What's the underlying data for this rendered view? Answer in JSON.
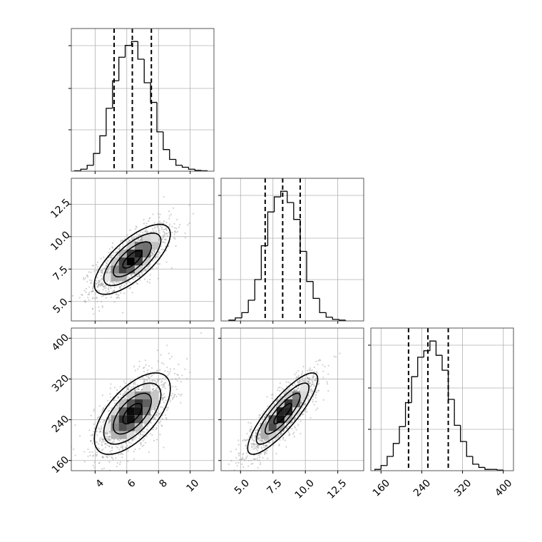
{
  "chart_data": {
    "type": "corner",
    "grid": true,
    "parameters": [
      {
        "range": [
          2.5,
          11.5
        ],
        "ticks": [
          4,
          6,
          8,
          10
        ],
        "tick_labels": [
          "4",
          "6",
          "8",
          "10"
        ],
        "quantiles": [
          5.2,
          6.35,
          7.55
        ]
      },
      {
        "range": [
          3.5,
          14.5
        ],
        "ticks": [
          5.0,
          7.5,
          10.0,
          12.5
        ],
        "tick_labels": [
          "5.0",
          "7.5",
          "10.0",
          "12.5"
        ],
        "quantiles": [
          6.9,
          8.25,
          9.6
        ]
      },
      {
        "range": [
          140,
          420
        ],
        "ticks": [
          160,
          240,
          320,
          400
        ],
        "tick_labels": [
          "160",
          "240",
          "320",
          "400"
        ],
        "quantiles": [
          214,
          252,
          292
        ]
      }
    ],
    "histograms": [
      {
        "bin_edges": [
          2.7,
          3.1,
          3.5,
          3.9,
          4.3,
          4.7,
          5.1,
          5.5,
          5.9,
          6.3,
          6.7,
          7.1,
          7.5,
          7.9,
          8.3,
          8.7,
          9.1,
          9.5,
          9.9,
          10.3,
          10.7,
          11.1
        ],
        "counts": [
          1,
          5,
          15,
          45,
          90,
          160,
          230,
          290,
          320,
          330,
          285,
          225,
          175,
          100,
          55,
          30,
          15,
          10,
          5,
          2,
          1
        ]
      },
      {
        "bin_edges": [
          4.1,
          4.6,
          5.1,
          5.6,
          6.1,
          6.6,
          7.1,
          7.6,
          8.1,
          8.6,
          9.1,
          9.6,
          10.1,
          10.6,
          11.1,
          11.6,
          12.1,
          12.6,
          13.1
        ],
        "counts": [
          2,
          8,
          22,
          55,
          110,
          200,
          290,
          330,
          345,
          315,
          270,
          185,
          105,
          60,
          22,
          10,
          4,
          2
        ]
      },
      {
        "bin_edges": [
          148,
          160,
          172,
          184,
          196,
          208,
          220,
          232,
          244,
          256,
          268,
          280,
          292,
          304,
          316,
          328,
          340,
          352,
          364,
          376,
          388,
          400
        ],
        "counts": [
          2,
          8,
          22,
          42,
          68,
          105,
          145,
          175,
          185,
          200,
          178,
          155,
          110,
          70,
          45,
          22,
          10,
          5,
          2,
          2,
          1
        ]
      }
    ],
    "pairs": [
      {
        "x_param": 0,
        "y_param": 1,
        "mean": [
          6.35,
          8.25
        ],
        "sd": [
          1.2,
          1.35
        ],
        "corr": 0.72,
        "n_points": 1500
      },
      {
        "x_param": 0,
        "y_param": 2,
        "mean": [
          6.35,
          252
        ],
        "sd": [
          1.2,
          40
        ],
        "corr": 0.62,
        "n_points": 1500
      },
      {
        "x_param": 1,
        "y_param": 2,
        "mean": [
          8.25,
          252
        ],
        "sd": [
          1.35,
          40
        ],
        "corr": 0.85,
        "n_points": 1500
      }
    ]
  }
}
